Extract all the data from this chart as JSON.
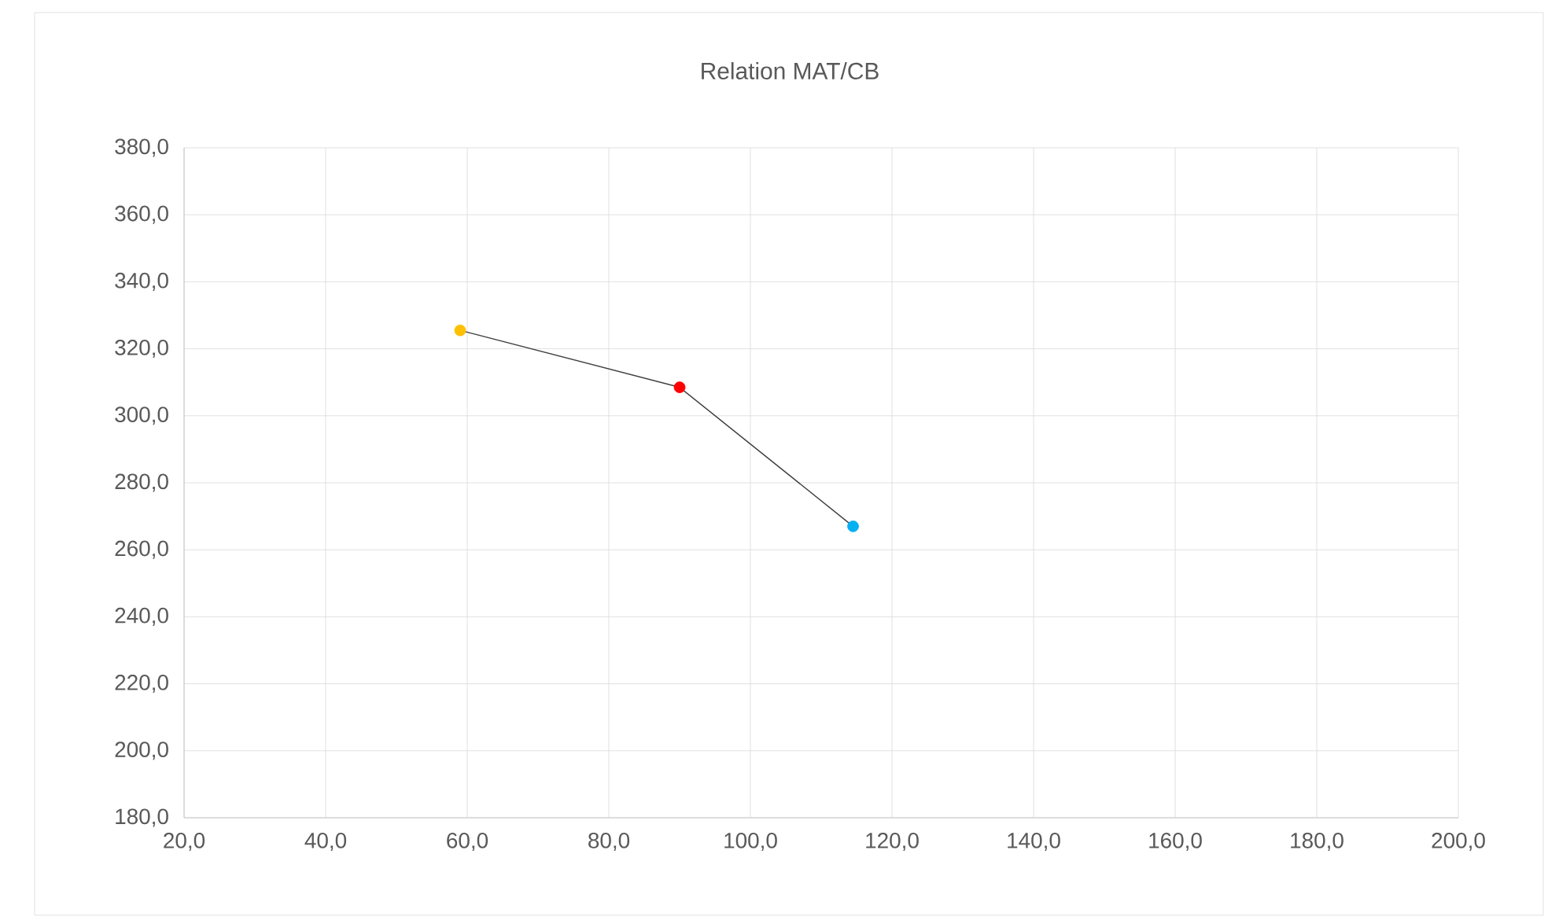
{
  "chart_data": {
    "type": "line",
    "title": "Relation MAT/CB",
    "x": [
      59,
      90,
      114.5
    ],
    "series": [
      {
        "color": "#404040",
        "colors": [
          "#ffc000",
          "#ff0000",
          "#00b0f0"
        ],
        "values": [
          325.5,
          308.5,
          267
        ]
      }
    ],
    "marker": "circle",
    "grid": true,
    "xlim": [
      20,
      200
    ],
    "ylim": [
      180,
      380
    ],
    "xticks": [
      {
        "value": 20,
        "label": "20,0"
      },
      {
        "value": 40,
        "label": "40,0"
      },
      {
        "value": 60,
        "label": "60,0"
      },
      {
        "value": 80,
        "label": "80,0"
      },
      {
        "value": 100,
        "label": "100,0"
      },
      {
        "value": 120,
        "label": "120,0"
      },
      {
        "value": 140,
        "label": "140,0"
      },
      {
        "value": 160,
        "label": "160,0"
      },
      {
        "value": 180,
        "label": "180,0"
      },
      {
        "value": 200,
        "label": "200,0"
      }
    ],
    "yticks": [
      {
        "value": 180,
        "label": "180,0"
      },
      {
        "value": 200,
        "label": "200,0"
      },
      {
        "value": 220,
        "label": "220,0"
      },
      {
        "value": 240,
        "label": "240,0"
      },
      {
        "value": 260,
        "label": "260,0"
      },
      {
        "value": 280,
        "label": "280,0"
      },
      {
        "value": 300,
        "label": "300,0"
      },
      {
        "value": 320,
        "label": "320,0"
      },
      {
        "value": 340,
        "label": "340,0"
      },
      {
        "value": 360,
        "label": "360,0"
      },
      {
        "value": 380,
        "label": "380,0"
      }
    ]
  }
}
